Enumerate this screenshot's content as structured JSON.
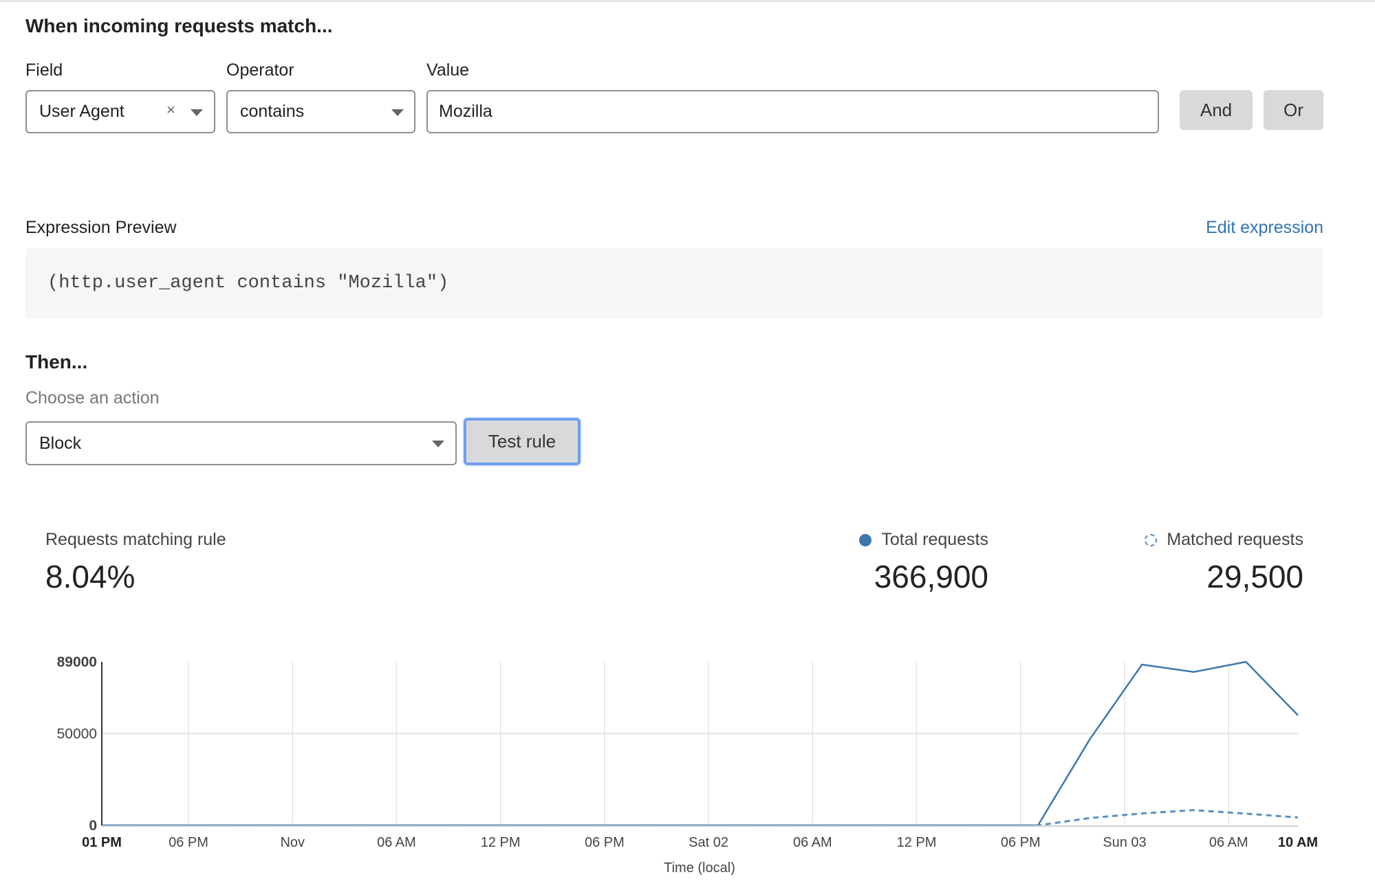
{
  "conditions": {
    "heading": "When incoming requests match...",
    "field": {
      "label": "Field",
      "value": "User Agent",
      "clear_icon": "×"
    },
    "operator": {
      "label": "Operator",
      "value": "contains"
    },
    "value": {
      "label": "Value",
      "value": "Mozilla"
    },
    "and_label": "And",
    "or_label": "Or"
  },
  "expression": {
    "label": "Expression Preview",
    "edit_label": "Edit expression",
    "code": "(http.user_agent contains \"Mozilla\")"
  },
  "then": {
    "heading": "Then...",
    "action_label": "Choose an action",
    "action_value": "Block",
    "test_label": "Test rule"
  },
  "stats": {
    "matching_label": "Requests matching rule",
    "matching_value": "8.04%",
    "total_label": "Total requests",
    "total_value": "366,900",
    "matched_label": "Matched requests",
    "matched_value": "29,500"
  },
  "colors": {
    "accent": "#3d77ae",
    "link": "#2f73b4",
    "focus": "#6f9ff0"
  },
  "chart_data": {
    "type": "line",
    "xlabel": "Time (local)",
    "ylabel": "",
    "ylim": [
      0,
      89000
    ],
    "yticks": [
      {
        "value": 0,
        "label": "0"
      },
      {
        "value": 50000,
        "label": "50000"
      },
      {
        "value": 89000,
        "label": "89000"
      }
    ],
    "xticks": [
      {
        "time": "10-31 13:00",
        "label": "01 PM",
        "bold": true
      },
      {
        "time": "10-31 18:00",
        "label": "06 PM"
      },
      {
        "time": "11-01 00:00",
        "label": "Nov"
      },
      {
        "time": "11-01 06:00",
        "label": "06 AM"
      },
      {
        "time": "11-01 12:00",
        "label": "12 PM"
      },
      {
        "time": "11-01 18:00",
        "label": "06 PM"
      },
      {
        "time": "11-02 00:00",
        "label": "Sat 02"
      },
      {
        "time": "11-02 06:00",
        "label": "06 AM"
      },
      {
        "time": "11-02 12:00",
        "label": "12 PM"
      },
      {
        "time": "11-02 18:00",
        "label": "06 PM"
      },
      {
        "time": "11-03 00:00",
        "label": "Sun 03"
      },
      {
        "time": "11-03 06:00",
        "label": "06 AM"
      },
      {
        "time": "11-03 10:00",
        "label": "10 AM",
        "bold": true
      }
    ],
    "grid": {
      "vertical": true,
      "horizontal": true
    },
    "x": [
      "10-31 13:00",
      "10-31 16:00",
      "10-31 19:00",
      "10-31 22:00",
      "11-01 01:00",
      "11-01 04:00",
      "11-01 07:00",
      "11-01 10:00",
      "11-01 13:00",
      "11-01 16:00",
      "11-01 19:00",
      "11-01 22:00",
      "11-02 01:00",
      "11-02 04:00",
      "11-02 07:00",
      "11-02 10:00",
      "11-02 13:00",
      "11-02 16:00",
      "11-02 19:00",
      "11-02 22:00",
      "11-03 01:00",
      "11-03 04:00",
      "11-03 07:00",
      "11-03 10:00"
    ],
    "series": [
      {
        "name": "Total requests",
        "style": "solid",
        "color": "#3d77ae",
        "values": [
          0,
          0,
          0,
          0,
          0,
          0,
          0,
          0,
          0,
          0,
          0,
          0,
          0,
          0,
          0,
          0,
          0,
          0,
          0,
          47000,
          87500,
          83500,
          89000,
          59900
        ]
      },
      {
        "name": "Matched requests",
        "style": "dashed",
        "color": "#5b8fc4",
        "values": [
          0,
          0,
          0,
          0,
          0,
          0,
          0,
          0,
          0,
          0,
          0,
          0,
          0,
          0,
          0,
          0,
          0,
          0,
          0,
          4000,
          6500,
          8300,
          6400,
          4300
        ]
      }
    ]
  }
}
